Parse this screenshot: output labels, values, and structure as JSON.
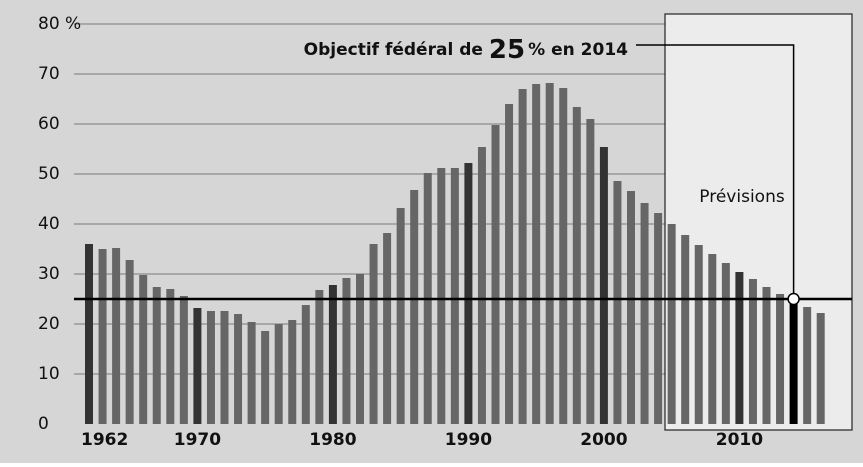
{
  "chart_data": {
    "type": "bar",
    "annotation_parts": [
      "Objectif fédéral de",
      "25",
      "%",
      "en 2014"
    ],
    "forecast_label": "Prévisions",
    "target": 25,
    "categories": [
      "1962",
      null,
      null,
      null,
      null,
      null,
      null,
      null,
      "1970",
      null,
      null,
      null,
      null,
      null,
      null,
      null,
      null,
      null,
      "1980",
      null,
      null,
      null,
      null,
      null,
      null,
      null,
      null,
      null,
      "1990",
      null,
      null,
      null,
      null,
      null,
      null,
      null,
      null,
      null,
      "2000",
      null,
      null,
      null,
      null,
      null,
      null,
      null,
      null,
      null,
      "2010",
      null,
      null,
      null,
      null,
      null,
      null
    ],
    "values": [
      36,
      35,
      35.2,
      32.8,
      29.8,
      27.4,
      27,
      25.6,
      23.2,
      22.6,
      22.6,
      22,
      20.4,
      18.6,
      20,
      20.8,
      23.8,
      26.8,
      27.8,
      29.2,
      30,
      36,
      38.2,
      43.2,
      46.8,
      50.2,
      51.2,
      51.2,
      52.2,
      55.4,
      59.8,
      64,
      67,
      68,
      68.2,
      67.2,
      63.4,
      61,
      55.4,
      48.6,
      46.6,
      44.2,
      42.2,
      40,
      37.8,
      35.8,
      34,
      32.2,
      30.4,
      29,
      27.4,
      26,
      25.2,
      23.4,
      22.2
    ],
    "colors": [
      "#333333",
      "#666666",
      "#666666",
      "#666666",
      "#666666",
      "#666666",
      "#666666",
      "#666666",
      "#333333",
      "#666666",
      "#666666",
      "#666666",
      "#666666",
      "#666666",
      "#666666",
      "#666666",
      "#666666",
      "#666666",
      "#333333",
      "#666666",
      "#666666",
      "#666666",
      "#666666",
      "#666666",
      "#666666",
      "#666666",
      "#666666",
      "#666666",
      "#333333",
      "#666666",
      "#666666",
      "#666666",
      "#666666",
      "#666666",
      "#666666",
      "#666666",
      "#666666",
      "#666666",
      "#333333",
      "#666666",
      "#666666",
      "#666666",
      "#666666",
      "#666666",
      "#666666",
      "#666666",
      "#666666",
      "#666666",
      "#333333",
      "#666666",
      "#666666",
      "#666666",
      "#000000",
      "#666666",
      "#666666"
    ],
    "ylim": [
      0,
      80
    ],
    "yticks": [
      0,
      10,
      20,
      30,
      40,
      50,
      60,
      70,
      {
        "value": 80,
        "label": "80 %"
      }
    ],
    "grid": true
  }
}
